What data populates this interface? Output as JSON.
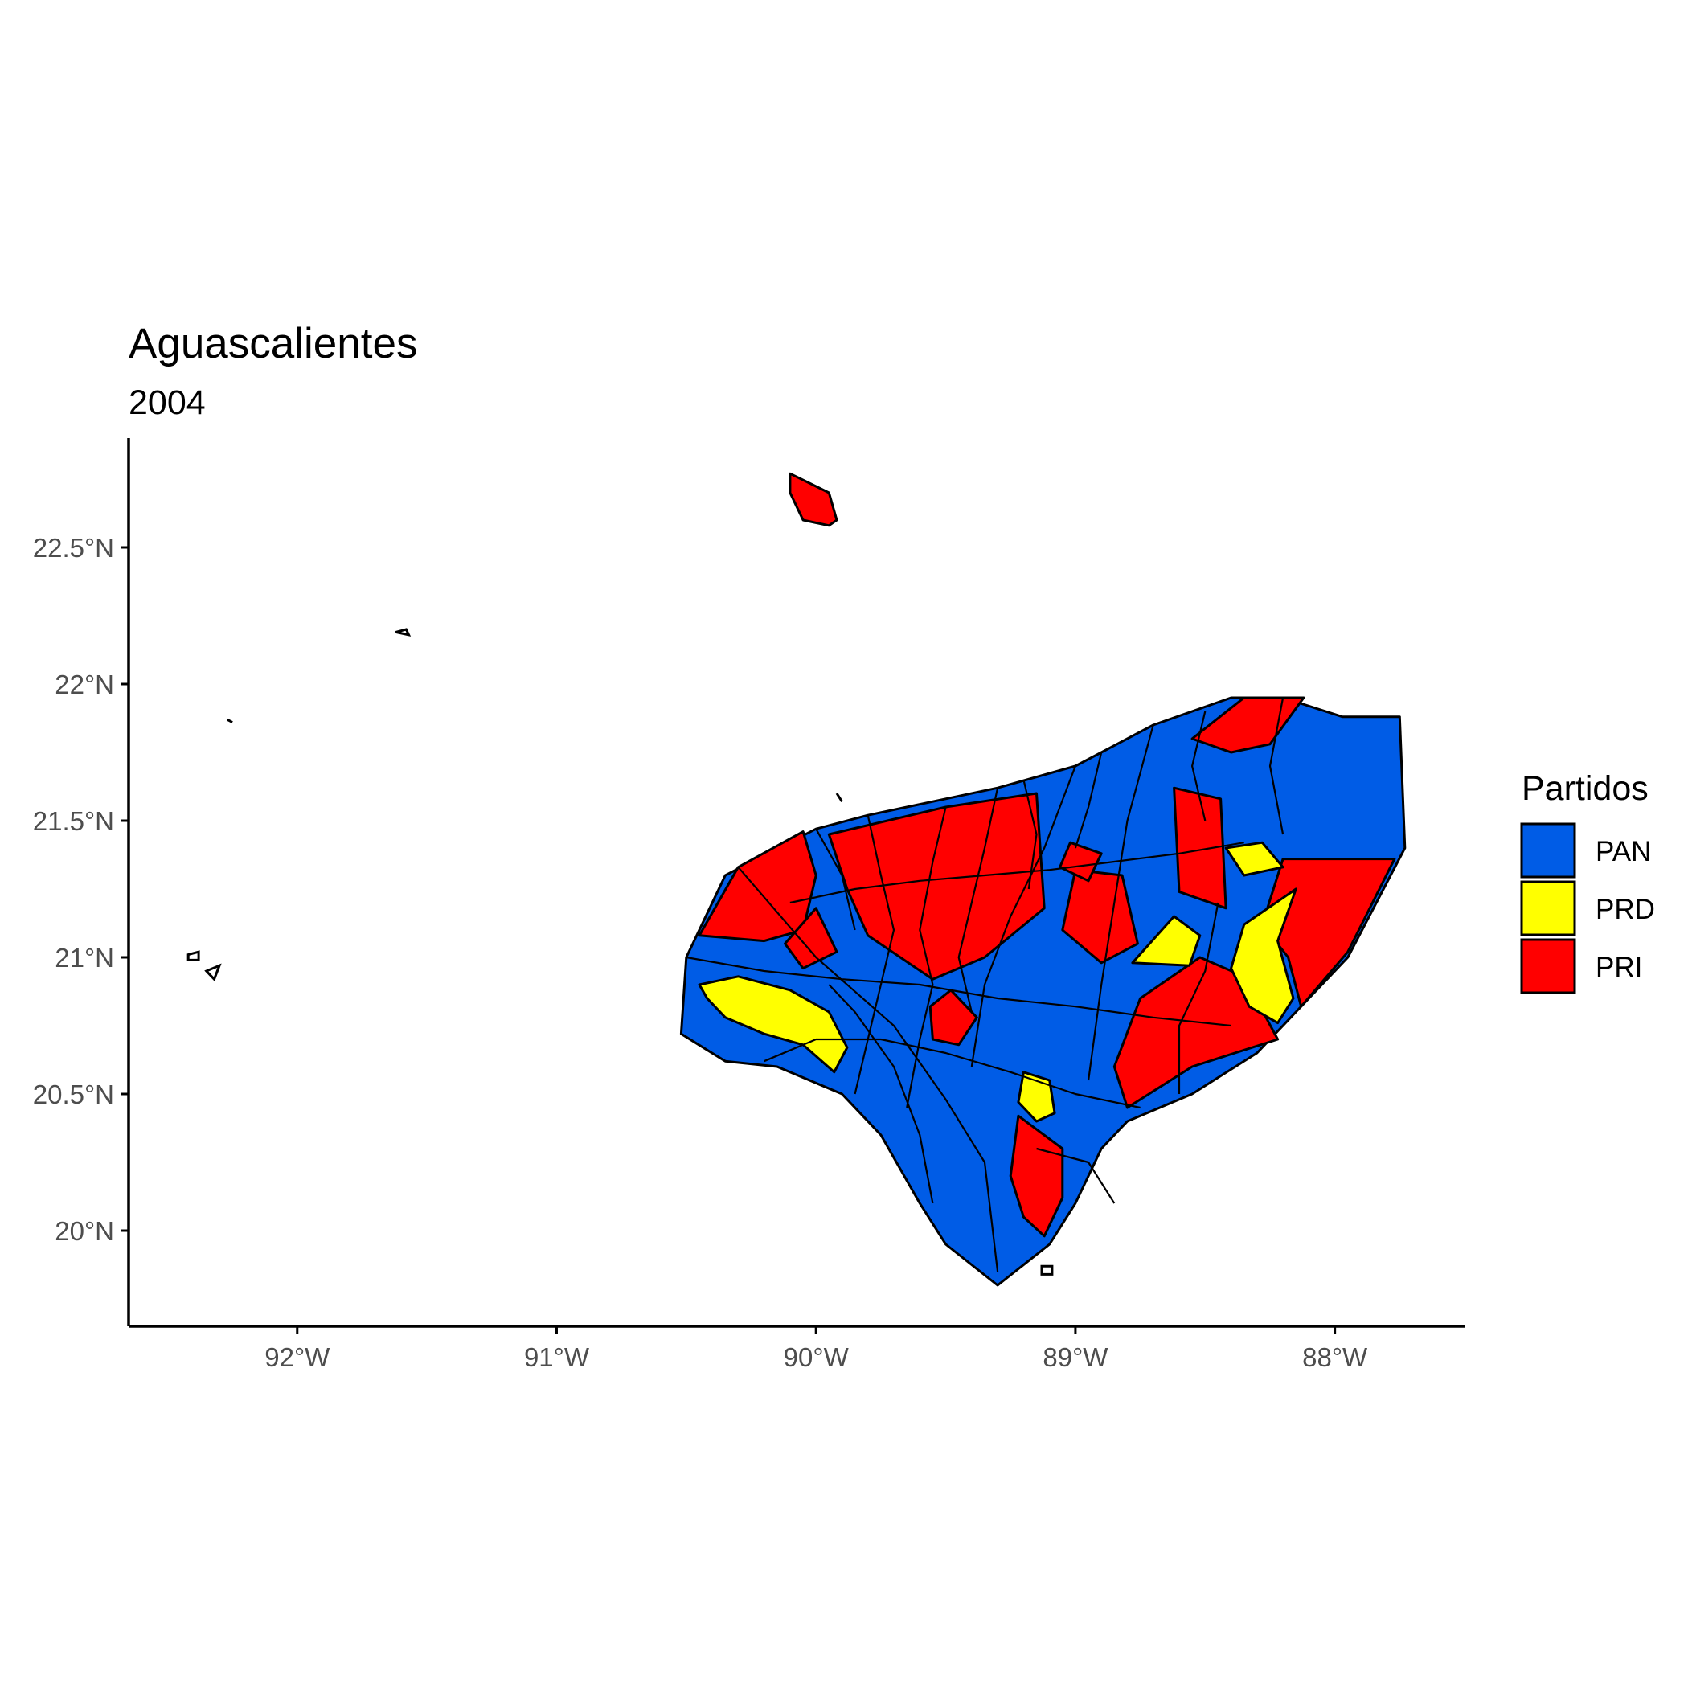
{
  "chart_data": {
    "type": "choropleth-map",
    "title": "Aguascalientes",
    "subtitle": "2004",
    "xlabel": "",
    "ylabel": "",
    "xlim": [
      -92.65,
      -87.5
    ],
    "ylim": [
      19.65,
      22.9
    ],
    "x_ticks": [
      {
        "value": -92,
        "label": "92°W"
      },
      {
        "value": -91,
        "label": "91°W"
      },
      {
        "value": -90,
        "label": "90°W"
      },
      {
        "value": -89,
        "label": "89°W"
      },
      {
        "value": -88,
        "label": "88°W"
      }
    ],
    "y_ticks": [
      {
        "value": 20.0,
        "label": "20°N"
      },
      {
        "value": 20.5,
        "label": "20.5°N"
      },
      {
        "value": 21.0,
        "label": "21°N"
      },
      {
        "value": 21.5,
        "label": "21.5°N"
      },
      {
        "value": 22.0,
        "label": "22°N"
      },
      {
        "value": 22.5,
        "label": "22.5°N"
      }
    ],
    "legend": {
      "title": "Partidos",
      "position": "right",
      "entries": [
        {
          "label": "PAN",
          "color": "#005ce6"
        },
        {
          "label": "PRD",
          "color": "#ffff00"
        },
        {
          "label": "PRI",
          "color": "#ff0000"
        }
      ]
    },
    "grid": false,
    "regions": [
      {
        "party": "PAN",
        "coords": [
          [
            -90.52,
            20.72
          ],
          [
            -90.5,
            21.0
          ],
          [
            -90.35,
            21.3
          ],
          [
            -90.0,
            21.47
          ],
          [
            -89.8,
            21.52
          ],
          [
            -89.3,
            21.62
          ],
          [
            -89.0,
            21.7
          ],
          [
            -88.7,
            21.85
          ],
          [
            -88.4,
            21.95
          ],
          [
            -88.2,
            21.95
          ],
          [
            -87.97,
            21.88
          ],
          [
            -87.75,
            21.88
          ],
          [
            -87.73,
            21.4
          ],
          [
            -87.95,
            21.0
          ],
          [
            -88.15,
            20.8
          ],
          [
            -88.3,
            20.65
          ],
          [
            -88.55,
            20.5
          ],
          [
            -88.8,
            20.4
          ],
          [
            -88.9,
            20.3
          ],
          [
            -89.0,
            20.1
          ],
          [
            -89.1,
            19.95
          ],
          [
            -89.3,
            19.8
          ],
          [
            -89.5,
            19.95
          ],
          [
            -89.6,
            20.1
          ],
          [
            -89.75,
            20.35
          ],
          [
            -89.9,
            20.5
          ],
          [
            -90.15,
            20.6
          ],
          [
            -90.35,
            20.62
          ]
        ]
      },
      {
        "party": "PRI",
        "coords": [
          [
            -89.95,
            21.45
          ],
          [
            -89.5,
            21.55
          ],
          [
            -89.15,
            21.6
          ],
          [
            -89.12,
            21.18
          ],
          [
            -89.35,
            21.0
          ],
          [
            -89.55,
            20.92
          ],
          [
            -89.8,
            21.08
          ],
          [
            -89.88,
            21.25
          ]
        ]
      },
      {
        "party": "PRI",
        "coords": [
          [
            -90.45,
            21.08
          ],
          [
            -90.3,
            21.33
          ],
          [
            -90.05,
            21.46
          ],
          [
            -90.0,
            21.3
          ],
          [
            -90.05,
            21.1
          ],
          [
            -90.2,
            21.06
          ]
        ]
      },
      {
        "party": "PRI",
        "coords": [
          [
            -90.12,
            21.05
          ],
          [
            -90.0,
            21.18
          ],
          [
            -89.92,
            21.02
          ],
          [
            -90.05,
            20.96
          ]
        ]
      },
      {
        "party": "PRI",
        "coords": [
          [
            -88.62,
            21.62
          ],
          [
            -88.44,
            21.58
          ],
          [
            -88.42,
            21.18
          ],
          [
            -88.6,
            21.24
          ]
        ]
      },
      {
        "party": "PRI",
        "coords": [
          [
            -88.55,
            21.8
          ],
          [
            -88.35,
            21.95
          ],
          [
            -88.12,
            21.95
          ],
          [
            -88.25,
            21.78
          ],
          [
            -88.4,
            21.75
          ]
        ]
      },
      {
        "party": "PRI",
        "coords": [
          [
            -88.2,
            21.36
          ],
          [
            -87.77,
            21.36
          ],
          [
            -87.95,
            21.02
          ],
          [
            -88.13,
            20.82
          ],
          [
            -88.18,
            21.0
          ],
          [
            -88.28,
            21.12
          ]
        ]
      },
      {
        "party": "PRI",
        "coords": [
          [
            -88.52,
            21.0
          ],
          [
            -88.35,
            20.93
          ],
          [
            -88.22,
            20.7
          ],
          [
            -88.55,
            20.6
          ],
          [
            -88.8,
            20.45
          ],
          [
            -88.85,
            20.6
          ],
          [
            -88.75,
            20.85
          ]
        ]
      },
      {
        "party": "PRI",
        "coords": [
          [
            -89.0,
            21.32
          ],
          [
            -88.82,
            21.3
          ],
          [
            -88.76,
            21.05
          ],
          [
            -88.9,
            20.98
          ],
          [
            -89.05,
            21.1
          ]
        ]
      },
      {
        "party": "PRI",
        "coords": [
          [
            -89.22,
            20.42
          ],
          [
            -89.05,
            20.3
          ],
          [
            -89.05,
            20.12
          ],
          [
            -89.12,
            19.98
          ],
          [
            -89.2,
            20.05
          ],
          [
            -89.25,
            20.2
          ]
        ]
      },
      {
        "party": "PRI",
        "coords": [
          [
            -89.48,
            20.88
          ],
          [
            -89.38,
            20.78
          ],
          [
            -89.45,
            20.68
          ],
          [
            -89.55,
            20.7
          ],
          [
            -89.56,
            20.82
          ]
        ]
      },
      {
        "party": "PRI",
        "coords": [
          [
            -89.02,
            21.42
          ],
          [
            -88.9,
            21.38
          ],
          [
            -88.95,
            21.28
          ],
          [
            -89.06,
            21.33
          ]
        ]
      },
      {
        "party": "PRI",
        "coords": [
          [
            -90.1,
            22.77
          ],
          [
            -89.95,
            22.7
          ],
          [
            -89.92,
            22.6
          ],
          [
            -89.95,
            22.58
          ],
          [
            -90.05,
            22.6
          ],
          [
            -90.1,
            22.7
          ]
        ]
      },
      {
        "party": "PRD",
        "coords": [
          [
            -90.45,
            20.9
          ],
          [
            -90.3,
            20.93
          ],
          [
            -90.1,
            20.88
          ],
          [
            -89.95,
            20.8
          ],
          [
            -89.88,
            20.67
          ],
          [
            -89.93,
            20.58
          ],
          [
            -90.05,
            20.68
          ],
          [
            -90.2,
            20.72
          ],
          [
            -90.35,
            20.78
          ],
          [
            -90.42,
            20.85
          ]
        ]
      },
      {
        "party": "PRD",
        "coords": [
          [
            -88.35,
            21.12
          ],
          [
            -88.15,
            21.25
          ],
          [
            -88.22,
            21.06
          ],
          [
            -88.16,
            20.85
          ],
          [
            -88.22,
            20.76
          ],
          [
            -88.33,
            20.82
          ],
          [
            -88.4,
            20.96
          ]
        ]
      },
      {
        "party": "PRD",
        "coords": [
          [
            -88.78,
            20.98
          ],
          [
            -88.62,
            21.15
          ],
          [
            -88.52,
            21.08
          ],
          [
            -88.56,
            20.97
          ]
        ]
      },
      {
        "party": "PRD",
        "coords": [
          [
            -88.42,
            21.4
          ],
          [
            -88.28,
            21.42
          ],
          [
            -88.2,
            21.33
          ],
          [
            -88.35,
            21.3
          ]
        ]
      },
      {
        "party": "PRD",
        "coords": [
          [
            -89.2,
            20.58
          ],
          [
            -89.1,
            20.55
          ],
          [
            -89.08,
            20.43
          ],
          [
            -89.15,
            20.4
          ],
          [
            -89.22,
            20.47
          ]
        ]
      }
    ],
    "boundaries": [
      [
        [
          -90.3,
          21.33
        ],
        [
          -90.0,
          21.0
        ],
        [
          -89.7,
          20.75
        ],
        [
          -89.5,
          20.48
        ],
        [
          -89.35,
          20.25
        ],
        [
          -89.3,
          19.85
        ]
      ],
      [
        [
          -89.0,
          21.7
        ],
        [
          -89.12,
          21.4
        ],
        [
          -89.25,
          21.15
        ],
        [
          -89.35,
          20.9
        ],
        [
          -89.4,
          20.6
        ]
      ],
      [
        [
          -88.7,
          21.85
        ],
        [
          -88.8,
          21.5
        ],
        [
          -88.85,
          21.2
        ],
        [
          -88.9,
          20.9
        ],
        [
          -88.95,
          20.55
        ]
      ],
      [
        [
          -90.5,
          21.0
        ],
        [
          -90.2,
          20.95
        ],
        [
          -89.9,
          20.92
        ],
        [
          -89.6,
          20.9
        ],
        [
          -89.3,
          20.85
        ],
        [
          -89.0,
          20.82
        ],
        [
          -88.7,
          20.78
        ],
        [
          -88.4,
          20.75
        ]
      ],
      [
        [
          -90.2,
          20.62
        ],
        [
          -90.0,
          20.7
        ],
        [
          -89.75,
          20.7
        ],
        [
          -89.5,
          20.65
        ],
        [
          -89.25,
          20.58
        ],
        [
          -89.0,
          20.5
        ],
        [
          -88.75,
          20.45
        ]
      ],
      [
        [
          -89.8,
          21.52
        ],
        [
          -89.75,
          21.3
        ],
        [
          -89.7,
          21.1
        ],
        [
          -89.75,
          20.9
        ],
        [
          -89.8,
          20.7
        ],
        [
          -89.85,
          20.5
        ]
      ],
      [
        [
          -89.5,
          21.55
        ],
        [
          -89.55,
          21.35
        ],
        [
          -89.6,
          21.1
        ],
        [
          -89.55,
          20.9
        ],
        [
          -89.6,
          20.7
        ],
        [
          -89.65,
          20.45
        ]
      ],
      [
        [
          -89.3,
          21.62
        ],
        [
          -89.35,
          21.4
        ],
        [
          -89.4,
          21.2
        ],
        [
          -89.45,
          21.0
        ],
        [
          -89.4,
          20.8
        ]
      ],
      [
        [
          -90.1,
          21.2
        ],
        [
          -89.85,
          21.25
        ],
        [
          -89.6,
          21.28
        ],
        [
          -89.35,
          21.3
        ],
        [
          -89.1,
          21.32
        ],
        [
          -88.85,
          21.35
        ],
        [
          -88.6,
          21.38
        ],
        [
          -88.35,
          21.42
        ]
      ],
      [
        [
          -90.0,
          21.47
        ],
        [
          -89.9,
          21.3
        ],
        [
          -89.85,
          21.1
        ]
      ],
      [
        [
          -89.2,
          21.65
        ],
        [
          -89.15,
          21.45
        ],
        [
          -89.18,
          21.25
        ]
      ],
      [
        [
          -88.9,
          21.75
        ],
        [
          -88.95,
          21.55
        ],
        [
          -89.0,
          21.4
        ]
      ],
      [
        [
          -88.5,
          21.9
        ],
        [
          -88.55,
          21.7
        ],
        [
          -88.5,
          21.5
        ]
      ],
      [
        [
          -88.2,
          21.95
        ],
        [
          -88.25,
          21.7
        ],
        [
          -88.2,
          21.45
        ]
      ],
      [
        [
          -89.95,
          20.9
        ],
        [
          -89.85,
          20.8
        ],
        [
          -89.7,
          20.6
        ],
        [
          -89.6,
          20.35
        ],
        [
          -89.55,
          20.1
        ]
      ],
      [
        [
          -89.15,
          20.3
        ],
        [
          -88.95,
          20.25
        ],
        [
          -88.85,
          20.1
        ]
      ],
      [
        [
          -88.6,
          20.5
        ],
        [
          -88.6,
          20.75
        ],
        [
          -88.5,
          20.95
        ],
        [
          -88.45,
          21.2
        ]
      ]
    ],
    "islands": [
      [
        [
          -91.62,
          22.19
        ],
        [
          -91.58,
          22.2
        ],
        [
          -91.57,
          22.18
        ]
      ],
      [
        [
          -92.27,
          21.87
        ],
        [
          -92.25,
          21.86
        ]
      ],
      [
        [
          -92.42,
          21.01
        ],
        [
          -92.38,
          21.02
        ],
        [
          -92.38,
          20.99
        ],
        [
          -92.42,
          20.99
        ]
      ],
      [
        [
          -92.35,
          20.95
        ],
        [
          -92.3,
          20.97
        ],
        [
          -92.32,
          20.92
        ]
      ],
      [
        [
          -89.13,
          19.87
        ],
        [
          -89.09,
          19.87
        ],
        [
          -89.09,
          19.84
        ],
        [
          -89.13,
          19.84
        ]
      ],
      [
        [
          -89.92,
          21.6
        ],
        [
          -89.9,
          21.57
        ]
      ]
    ]
  }
}
